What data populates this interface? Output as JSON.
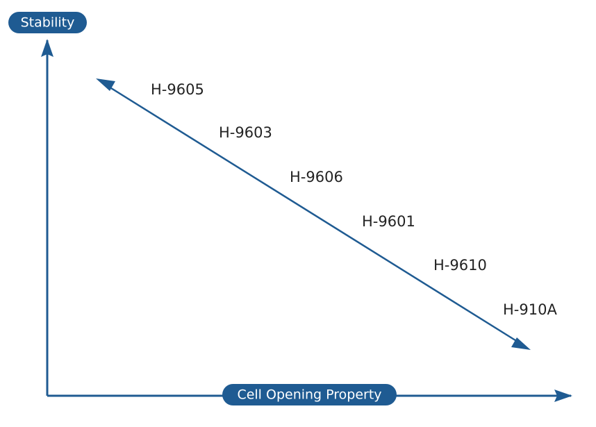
{
  "y_axis": {
    "label": "Stability"
  },
  "x_axis": {
    "label": "Cell Opening Property"
  },
  "products": [
    "H-9605",
    "H-9603",
    "H-9606",
    "H-9601",
    "H-9610",
    "H-910A"
  ]
}
